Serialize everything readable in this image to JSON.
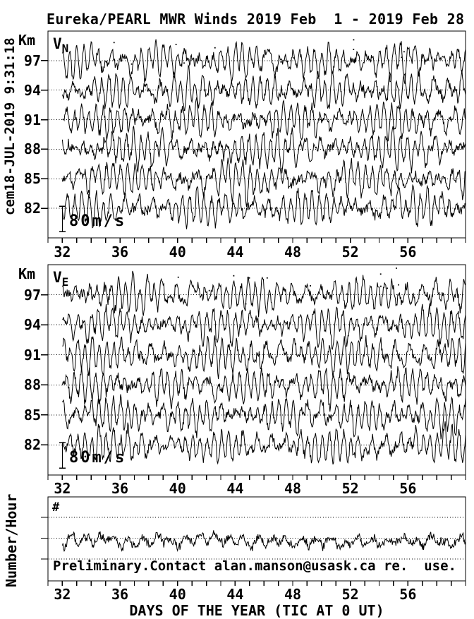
{
  "title": "Eureka/PEARL MWR Winds 2019 Feb  1 - 2019 Feb 28",
  "timestamp": "cem18-JUL-2019 9:31:18",
  "footer_note": "Preliminary.Contact alan.manson@usask.ca re.  use.",
  "chart_data": {
    "type": "line",
    "title": "Eureka/PEARL MWR Winds 2019 Feb  1 - 2019 Feb 28",
    "x": {
      "label": "DAYS OF THE YEAR (TIC AT 0 UT)",
      "range_days": [
        31,
        60
      ],
      "major_ticks": [
        32,
        36,
        40,
        44,
        48,
        52,
        56
      ],
      "minor_tick_step_days": 1
    },
    "panels": [
      {
        "name": "V",
        "subscript": "N",
        "ylabel": "Km",
        "series_baselines_km": [
          97,
          94,
          91,
          88,
          85,
          82
        ],
        "ylim_km": [
          79,
          100
        ],
        "scale_bar_label": "80m/s",
        "scale_bar_mps": 80,
        "samples_per_day": 24,
        "seed": 11
      },
      {
        "name": "V",
        "subscript": "E",
        "ylabel": "Km",
        "series_baselines_km": [
          97,
          94,
          91,
          88,
          85,
          82
        ],
        "ylim_km": [
          79,
          100
        ],
        "scale_bar_label": "80m/s",
        "scale_bar_mps": 80,
        "samples_per_day": 24,
        "seed": 57
      },
      {
        "name": "#",
        "ylabel": "Number/Hour",
        "gridline_levels": 3,
        "samples_per_day": 24,
        "seed": 93
      }
    ],
    "grid": "dotted-horizontal",
    "ink_color": "#000000",
    "background_color": "#ffffff"
  }
}
